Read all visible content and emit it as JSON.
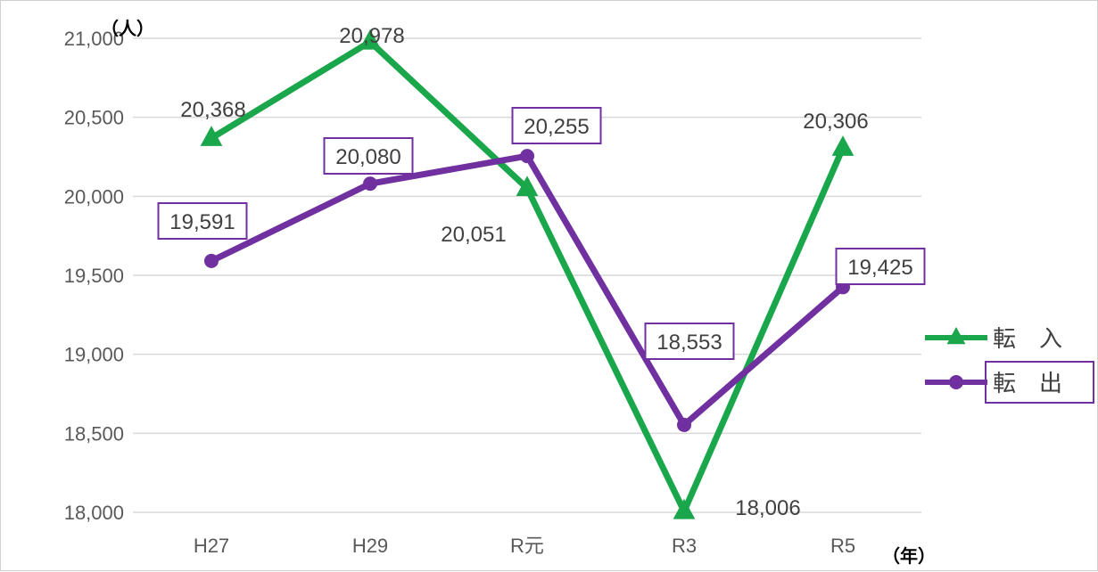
{
  "chart_data": {
    "type": "line",
    "categories": [
      "H27",
      "H29",
      "R元",
      "R3",
      "R5"
    ],
    "series": [
      {
        "name": "転　入",
        "values": [
          20368,
          20978,
          20051,
          18006,
          20306
        ],
        "labels": [
          "20,368",
          "20,978",
          "20,051",
          "18,006",
          "20,306"
        ],
        "color": "#1aa64b",
        "marker": "triangle",
        "boxed_labels": false
      },
      {
        "name": "転　出",
        "values": [
          19591,
          20080,
          20255,
          18553,
          19425
        ],
        "labels": [
          "19,591",
          "20,080",
          "20,255",
          "18,553",
          "19,425"
        ],
        "color": "#7030a0",
        "marker": "circle",
        "boxed_labels": true
      }
    ],
    "y_ticks": [
      "18,000",
      "18,500",
      "19,000",
      "19,500",
      "20,000",
      "20,500",
      "21,000"
    ],
    "y_tick_values": [
      18000,
      18500,
      19000,
      19500,
      20000,
      20500,
      21000
    ],
    "ylim": [
      18000,
      21000
    ],
    "ylabel": "（人）",
    "xlabel": "（年）",
    "grid": true,
    "legend_position": "right"
  }
}
